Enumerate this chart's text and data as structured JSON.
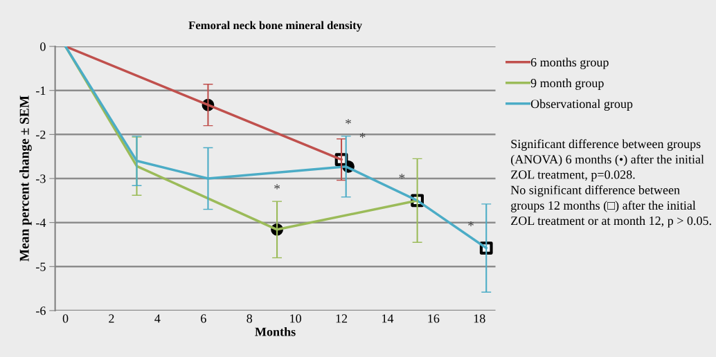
{
  "chart_data": {
    "type": "line",
    "title": "Femoral neck bone mineral density",
    "xlabel": "Months",
    "ylabel": "Mean percent change ± SEM",
    "series": [
      {
        "name": "6 months group",
        "color": "#c0504d",
        "x": [
          0,
          6.2,
          12.0
        ],
        "values": [
          0,
          -1.33,
          -2.57
        ],
        "errors": [
          null,
          0.47,
          0.47
        ]
      },
      {
        "name": "9 month group",
        "color": "#9bbb59",
        "x": [
          0,
          3.1,
          9.2,
          15.3
        ],
        "values": [
          0,
          -2.72,
          -4.16,
          -3.5
        ],
        "errors": [
          null,
          0.66,
          0.64,
          0.95
        ],
        "value_labels": [
          null,
          null,
          null,
          "*"
        ]
      },
      {
        "name": "Observational group",
        "color": "#4bacc6",
        "x": [
          0,
          3.1,
          6.2,
          12.2,
          15.3,
          18.3
        ],
        "values": [
          0,
          -2.6,
          -3.0,
          -2.73,
          -3.5,
          -4.58
        ],
        "errors": [
          null,
          0.56,
          0.7,
          0.69,
          null,
          1.0
        ],
        "value_labels": [
          null,
          null,
          null,
          null,
          null,
          "*"
        ]
      },
      {
        "type": "scatter",
        "marker": "circle",
        "color": "#000000",
        "x": [
          6.2,
          9.2,
          12.3
        ],
        "values": [
          -1.33,
          -4.16,
          -2.73
        ],
        "value_labels": [
          null,
          "*",
          "*"
        ]
      },
      {
        "type": "scatter",
        "marker": "square",
        "color": "#000000",
        "x": [
          12.0,
          15.3,
          18.3
        ],
        "values": [
          -2.57,
          -3.5,
          -4.58
        ],
        "value_labels": [
          "*",
          null,
          null
        ]
      }
    ],
    "xlim": [
      -0.45,
      18.7
    ],
    "xticks": [
      0,
      2,
      4,
      6,
      8,
      10,
      12,
      14,
      16,
      18
    ],
    "ylim": [
      -6,
      0
    ],
    "yticks": [
      -6,
      -5,
      -4,
      -3,
      -2,
      -1,
      0
    ],
    "grid": "y",
    "legend": "right",
    "marker": "none",
    "line_style": "solid",
    "annotations": [
      "Significant difference between groups (ANOVA) 6 months (•) after the initial ZOL treatment, p=0.028.\nNo significant difference between groups 12 months (□) after the initial ZOL treatment or at month 12, p > 0.05."
    ]
  }
}
